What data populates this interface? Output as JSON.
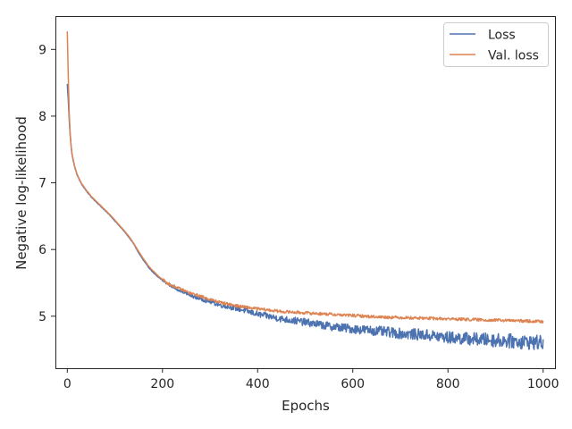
{
  "chart_data": {
    "type": "line",
    "title": "",
    "xlabel": "Epochs",
    "ylabel": "Negative log-likelihood",
    "xlim": [
      -25,
      1025
    ],
    "ylim": [
      4.22,
      9.5
    ],
    "xticks": [
      0,
      200,
      400,
      600,
      800,
      1000
    ],
    "yticks": [
      5,
      6,
      7,
      8,
      9
    ],
    "grid": false,
    "legend_position": "top-right",
    "series": [
      {
        "name": "Loss",
        "color": "#4c72b0",
        "noise": "high-frequency noise that grows after epoch ~250 (amplitude ~0.08-0.12)",
        "x": [
          0,
          2,
          4,
          6,
          8,
          10,
          15,
          20,
          25,
          30,
          40,
          50,
          60,
          70,
          80,
          90,
          100,
          110,
          120,
          130,
          140,
          150,
          160,
          170,
          180,
          190,
          200,
          210,
          220,
          230,
          240,
          250,
          260,
          280,
          300,
          320,
          340,
          360,
          380,
          400,
          450,
          500,
          550,
          600,
          650,
          700,
          750,
          800,
          850,
          900,
          950,
          1000
        ],
        "y": [
          8.48,
          8.25,
          7.95,
          7.72,
          7.55,
          7.42,
          7.25,
          7.13,
          7.05,
          6.98,
          6.88,
          6.79,
          6.72,
          6.65,
          6.58,
          6.51,
          6.43,
          6.35,
          6.27,
          6.18,
          6.08,
          5.95,
          5.84,
          5.74,
          5.66,
          5.59,
          5.54,
          5.49,
          5.45,
          5.41,
          5.38,
          5.34,
          5.31,
          5.26,
          5.22,
          5.17,
          5.14,
          5.11,
          5.07,
          5.03,
          4.96,
          4.91,
          4.85,
          4.81,
          4.78,
          4.74,
          4.72,
          4.68,
          4.66,
          4.64,
          4.62,
          4.6
        ]
      },
      {
        "name": "Val. loss",
        "color": "#dd8452",
        "noise": "small noise (amplitude ~0.02-0.03)",
        "x": [
          0,
          2,
          4,
          6,
          8,
          10,
          15,
          20,
          25,
          30,
          40,
          50,
          60,
          70,
          80,
          90,
          100,
          110,
          120,
          130,
          140,
          150,
          160,
          170,
          180,
          190,
          200,
          210,
          220,
          230,
          240,
          250,
          260,
          280,
          300,
          320,
          340,
          360,
          380,
          400,
          450,
          500,
          550,
          600,
          650,
          700,
          750,
          800,
          850,
          900,
          950,
          1000
        ],
        "y": [
          9.27,
          8.6,
          8.05,
          7.75,
          7.56,
          7.43,
          7.26,
          7.14,
          7.06,
          6.99,
          6.89,
          6.8,
          6.73,
          6.66,
          6.59,
          6.52,
          6.44,
          6.36,
          6.28,
          6.19,
          6.09,
          5.97,
          5.86,
          5.76,
          5.68,
          5.61,
          5.55,
          5.5,
          5.46,
          5.43,
          5.4,
          5.37,
          5.34,
          5.3,
          5.25,
          5.21,
          5.18,
          5.15,
          5.13,
          5.11,
          5.07,
          5.05,
          5.03,
          5.01,
          4.99,
          4.98,
          4.97,
          4.96,
          4.95,
          4.94,
          4.93,
          4.92
        ]
      }
    ]
  }
}
